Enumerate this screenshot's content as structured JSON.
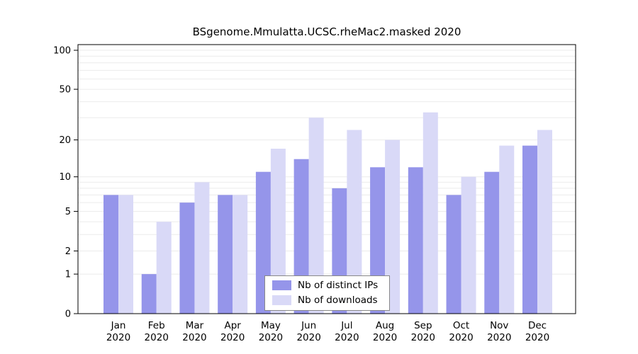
{
  "chart_data": {
    "type": "bar",
    "title": "BSgenome.Mmulatta.UCSC.rheMac2.masked 2020",
    "categories": [
      "Jan",
      "Feb",
      "Mar",
      "Apr",
      "May",
      "Jun",
      "Jul",
      "Aug",
      "Sep",
      "Oct",
      "Nov",
      "Dec"
    ],
    "year_label": "2020",
    "series": [
      {
        "name": "Nb of distinct IPs",
        "color": "#9595ea",
        "values": [
          7,
          1,
          6,
          7,
          11,
          14,
          8,
          12,
          12,
          7,
          11,
          18
        ]
      },
      {
        "name": "Nb of downloads",
        "color": "#d9d9f7",
        "values": [
          7,
          4,
          9,
          7,
          17,
          30,
          24,
          20,
          33,
          10,
          18,
          24
        ]
      }
    ],
    "yscale": "log1p",
    "ylim": [
      0,
      111
    ],
    "yticks": [
      0,
      1,
      2,
      5,
      10,
      20,
      50,
      100
    ],
    "gridlines": [
      1,
      2,
      3,
      4,
      5,
      6,
      7,
      8,
      9,
      10,
      20,
      30,
      40,
      50,
      60,
      70,
      80,
      90,
      100
    ],
    "grid": true,
    "grid_color": "#ebebeb",
    "frame_color": "#000000",
    "legend_position": "bottom-center"
  }
}
